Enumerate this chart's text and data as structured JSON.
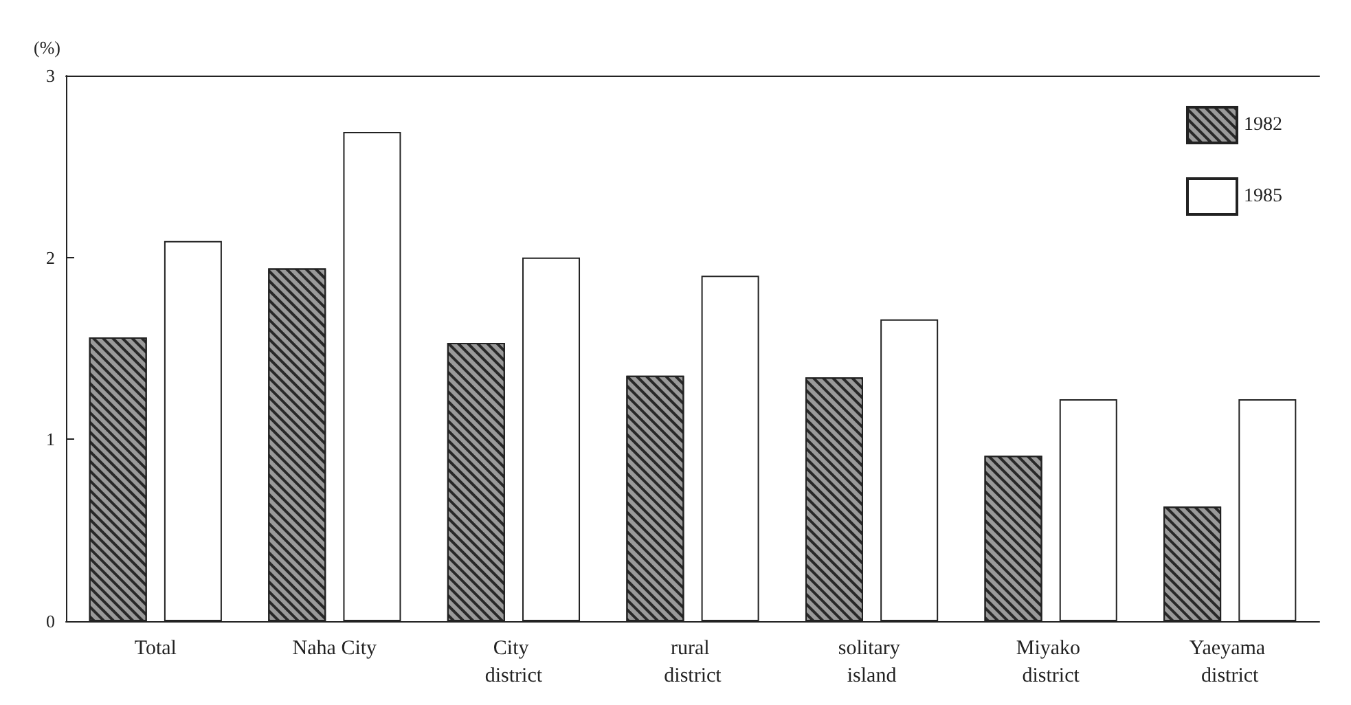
{
  "chart_data": {
    "type": "bar",
    "ylabel": "(%)",
    "categories": [
      "Total",
      "Naha City",
      "City district",
      "rural district",
      "solitary island",
      "Miyako district",
      "Yaeyama district"
    ],
    "series": [
      {
        "name": "1982",
        "color": "#9a9a9a",
        "values": [
          1.56,
          1.94,
          1.53,
          1.35,
          1.34,
          0.91,
          0.63
        ]
      },
      {
        "name": "1985",
        "color": "#ffffff",
        "values": [
          2.09,
          2.69,
          2.0,
          1.9,
          1.66,
          1.22,
          1.22
        ]
      }
    ],
    "ylim": [
      0,
      3
    ],
    "yticks": [
      0,
      1,
      2,
      3
    ],
    "grid": false,
    "legend": "top right"
  }
}
